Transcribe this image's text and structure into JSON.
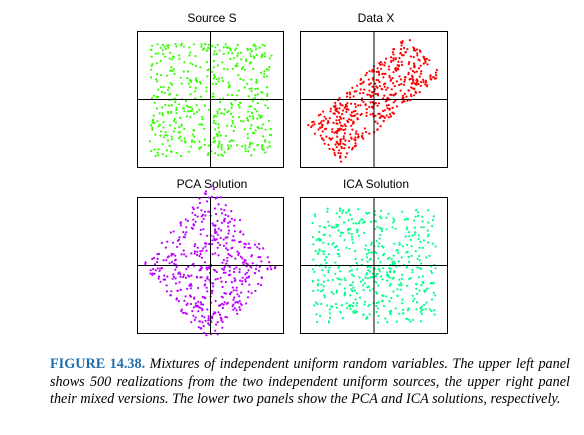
{
  "caption": {
    "label": "FIGURE 14.38.",
    "text": "Mixtures of independent uniform random variables. The upper left panel shows 500 realizations from the two independent uniform sources, the upper right panel their mixed versions. The lower two panels show the PCA and ICA solutions, respectively."
  },
  "chart_data": [
    {
      "type": "scatter",
      "title": "Source S",
      "n_points": 500,
      "distribution": "independent uniform on a square",
      "xlim": [
        -1.2,
        1.2
      ],
      "ylim": [
        -1.2,
        1.2
      ],
      "color": "#33ff00",
      "axes": "crosshair at origin",
      "grid": false
    },
    {
      "type": "scatter",
      "title": "Data X",
      "n_points": 500,
      "distribution": "linear mixture of uniforms, elongated along the diagonal",
      "xlim": [
        -1.2,
        1.2
      ],
      "ylim": [
        -1.2,
        1.2
      ],
      "color": "#ff0000",
      "axes": "crosshair at origin",
      "grid": false
    },
    {
      "type": "scatter",
      "title": "PCA Solution",
      "n_points": 500,
      "distribution": "rotated square (diamond)",
      "xlim": [
        -1.2,
        1.2
      ],
      "ylim": [
        -1.2,
        1.2
      ],
      "color": "#bb00ff",
      "axes": "crosshair at origin",
      "grid": false
    },
    {
      "type": "scatter",
      "title": "ICA Solution",
      "n_points": 500,
      "distribution": "independent uniform on a square",
      "xlim": [
        -1.2,
        1.2
      ],
      "ylim": [
        -1.2,
        1.2
      ],
      "color": "#00ff88",
      "axes": "crosshair at origin",
      "grid": false
    }
  ]
}
